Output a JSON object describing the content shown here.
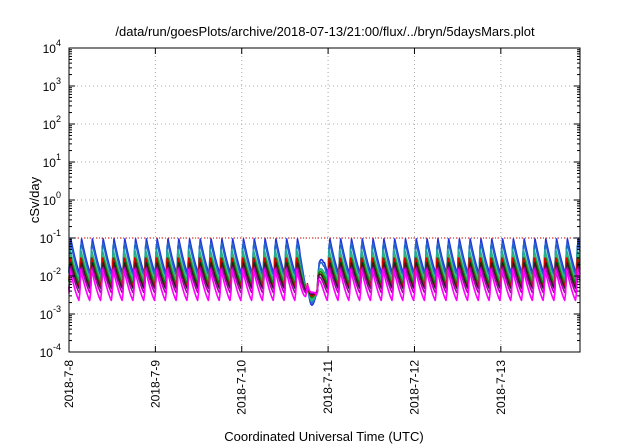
{
  "chart_data": {
    "type": "line",
    "title": "/data/run/goesPlots/archive/2018-07-13/21:00/flux/../bryn/5daysMars.plot",
    "xlabel": "Coordinated Universal Time (UTC)",
    "ylabel": "cSv/day",
    "yscale": "log",
    "ylim": [
      0.0001,
      10000
    ],
    "xlim": [
      "2018-07-08T00:00",
      "2018-07-13T22:00"
    ],
    "x_ticks": [
      "2018-7-8",
      "2018-7-9",
      "2018-7-10",
      "2018-7-11",
      "2018-7-12",
      "2018-7-13"
    ],
    "y_ticks": [
      {
        "base": "10",
        "exp": "-4"
      },
      {
        "base": "10",
        "exp": "-3"
      },
      {
        "base": "10",
        "exp": "-2"
      },
      {
        "base": "10",
        "exp": "-1"
      },
      {
        "base": "10",
        "exp": "0"
      },
      {
        "base": "10",
        "exp": "1"
      },
      {
        "base": "10",
        "exp": "2"
      },
      {
        "base": "10",
        "exp": "3"
      },
      {
        "base": "10",
        "exp": "4"
      }
    ],
    "grid": true,
    "reference_line": {
      "y": 0.1,
      "color": "#cc0000",
      "style": "dotted"
    },
    "oscillation": {
      "period_hours": 3,
      "peak_y": 0.08,
      "trough_y": 0.004
    },
    "dip": {
      "x": "2018-07-10T21:00",
      "min_y": 0.0017
    },
    "series": [
      {
        "color": "#2233dd",
        "peak_y": 0.11,
        "trough_y": 0.012
      },
      {
        "color": "#2266cc",
        "peak_y": 0.09,
        "trough_y": 0.01
      },
      {
        "color": "#22aa99",
        "peak_y": 0.05,
        "trough_y": 0.008
      },
      {
        "color": "#33bb66",
        "peak_y": 0.04,
        "trough_y": 0.007
      },
      {
        "color": "#008800",
        "peak_y": 0.035,
        "trough_y": 0.006
      },
      {
        "color": "#dd0000",
        "peak_y": 0.03,
        "trough_y": 0.005
      },
      {
        "color": "#222222",
        "peak_y": 0.025,
        "trough_y": 0.0045
      },
      {
        "color": "#aa00aa",
        "peak_y": 0.02,
        "trough_y": 0.0035
      },
      {
        "color": "#ff00ff",
        "peak_y": 0.015,
        "trough_y": 0.0022
      }
    ]
  }
}
